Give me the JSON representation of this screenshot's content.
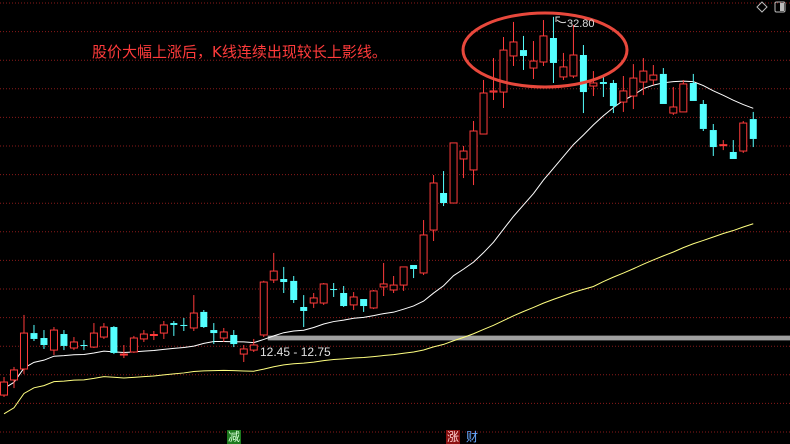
{
  "annotation_text": "股价大幅上涨后，K线连续出现较长上影线。",
  "bottom_markers": {
    "jian": "减",
    "zhang": "涨",
    "cai": "财"
  },
  "icons": {
    "top_right_1": "diamond-icon",
    "top_right_2": "window-toggle-icon"
  },
  "colors": {
    "up": "#ff3b3b",
    "down": "#54ffff",
    "ma_short": "#ffffff",
    "ma_long": "#ffff80",
    "grid": "#8a1a1a",
    "band": "#a0a0a0",
    "ellipse": "#e8483c"
  },
  "chart_data": {
    "type": "candlestick",
    "title": "",
    "xlabel": "",
    "ylabel": "",
    "ylim": [
      8.0,
      34.0
    ],
    "grid": true,
    "high_label": "32.80",
    "band": {
      "range": [
        12.45,
        12.75
      ],
      "label": "12.45 - 12.75",
      "start_index": 26
    },
    "highlight_range_index": [
      49,
      59
    ],
    "candles_ohlc": [
      [
        9.01,
        10.15,
        8.89,
        9.83
      ],
      [
        9.96,
        10.78,
        9.45,
        10.59
      ],
      [
        10.65,
        14.05,
        10.34,
        12.91
      ],
      [
        12.91,
        13.42,
        12.41,
        12.54
      ],
      [
        12.6,
        13.1,
        11.91,
        12.16
      ],
      [
        11.84,
        13.29,
        11.53,
        13.1
      ],
      [
        12.85,
        13.1,
        11.84,
        12.1
      ],
      [
        11.97,
        12.66,
        11.84,
        12.35
      ],
      [
        12.16,
        12.47,
        11.84,
        12.1
      ],
      [
        12.03,
        13.54,
        11.97,
        12.91
      ],
      [
        12.66,
        13.54,
        12.54,
        13.29
      ],
      [
        13.29,
        13.35,
        11.59,
        11.66
      ],
      [
        11.53,
        12.16,
        11.34,
        11.59
      ],
      [
        11.72,
        12.73,
        11.66,
        12.6
      ],
      [
        12.54,
        13.1,
        12.35,
        12.85
      ],
      [
        12.79,
        13.04,
        12.47,
        12.82
      ],
      [
        12.91,
        13.67,
        12.54,
        13.42
      ],
      [
        13.54,
        13.67,
        12.73,
        13.42
      ],
      [
        13.42,
        13.86,
        13.04,
        13.4
      ],
      [
        13.23,
        15.3,
        13.04,
        14.17
      ],
      [
        14.24,
        14.36,
        13.23,
        13.29
      ],
      [
        13.1,
        13.54,
        12.22,
        12.91
      ],
      [
        12.6,
        13.23,
        12.35,
        12.98
      ],
      [
        12.79,
        13.1,
        12.03,
        12.22
      ],
      [
        11.59,
        12.16,
        11.09,
        11.91
      ],
      [
        11.84,
        12.54,
        11.72,
        12.16
      ],
      [
        12.79,
        16.2,
        12.66,
        16.12
      ],
      [
        16.25,
        17.95,
        16.06,
        16.81
      ],
      [
        16.31,
        17.07,
        15.43,
        16.12
      ],
      [
        16.19,
        16.5,
        14.8,
        14.99
      ],
      [
        14.55,
        15.3,
        13.29,
        14.3
      ],
      [
        14.8,
        15.43,
        14.49,
        15.12
      ],
      [
        14.8,
        16.06,
        14.68,
        16.0
      ],
      [
        15.68,
        16.06,
        15.18,
        15.66
      ],
      [
        15.43,
        15.87,
        14.55,
        14.61
      ],
      [
        14.68,
        15.49,
        14.36,
        15.18
      ],
      [
        15.05,
        15.05,
        14.24,
        14.61
      ],
      [
        14.49,
        15.62,
        14.42,
        15.56
      ],
      [
        15.81,
        17.32,
        15.24,
        16.0
      ],
      [
        15.62,
        16.5,
        15.43,
        15.93
      ],
      [
        15.93,
        17.07,
        15.56,
        17.07
      ],
      [
        17.19,
        17.19,
        16.37,
        16.94
      ],
      [
        16.69,
        20.02,
        16.56,
        19.08
      ],
      [
        19.39,
        22.85,
        18.7,
        22.35
      ],
      [
        21.72,
        23.1,
        20.9,
        21.09
      ],
      [
        21.09,
        24.87,
        21.09,
        24.87
      ],
      [
        23.86,
        24.68,
        22.66,
        24.36
      ],
      [
        23.17,
        26.25,
        22.22,
        25.62
      ],
      [
        25.43,
        28.83,
        25.43,
        28.01
      ],
      [
        28.07,
        30.21,
        27.57,
        28.14
      ],
      [
        28.07,
        31.53,
        27.07,
        30.71
      ],
      [
        30.34,
        32.48,
        29.71,
        31.22
      ],
      [
        30.71,
        31.6,
        29.46,
        30.34
      ],
      [
        29.58,
        31.28,
        28.89,
        30.02
      ],
      [
        29.96,
        32.6,
        29.71,
        31.6
      ],
      [
        31.47,
        32.8,
        28.64,
        29.9
      ],
      [
        29.02,
        30.53,
        28.83,
        29.65
      ],
      [
        29.08,
        32.29,
        28.95,
        30.4
      ],
      [
        30.4,
        31.03,
        26.75,
        28.07
      ],
      [
        28.45,
        29.39,
        27.82,
        28.64
      ],
      [
        28.7,
        29.02,
        27.76,
        28.58
      ],
      [
        28.64,
        28.83,
        26.75,
        27.19
      ],
      [
        27.44,
        29.08,
        26.82,
        28.14
      ],
      [
        27.82,
        29.83,
        27.0,
        28.95
      ],
      [
        28.7,
        30.21,
        27.88,
        29.39
      ],
      [
        28.83,
        29.77,
        28.51,
        29.14
      ],
      [
        29.21,
        29.58,
        27.32,
        27.32
      ],
      [
        26.75,
        28.39,
        26.63,
        27.13
      ],
      [
        26.82,
        28.83,
        26.82,
        28.58
      ],
      [
        28.64,
        29.21,
        27.51,
        27.51
      ],
      [
        27.32,
        27.57,
        25.62,
        25.75
      ],
      [
        25.68,
        26.06,
        24.05,
        24.61
      ],
      [
        24.74,
        25.05,
        24.42,
        24.76
      ],
      [
        24.3,
        25.05,
        23.86,
        23.86
      ],
      [
        24.36,
        26.25,
        24.24,
        26.12
      ],
      [
        26.37,
        26.82,
        24.61,
        25.12
      ]
    ]
  }
}
